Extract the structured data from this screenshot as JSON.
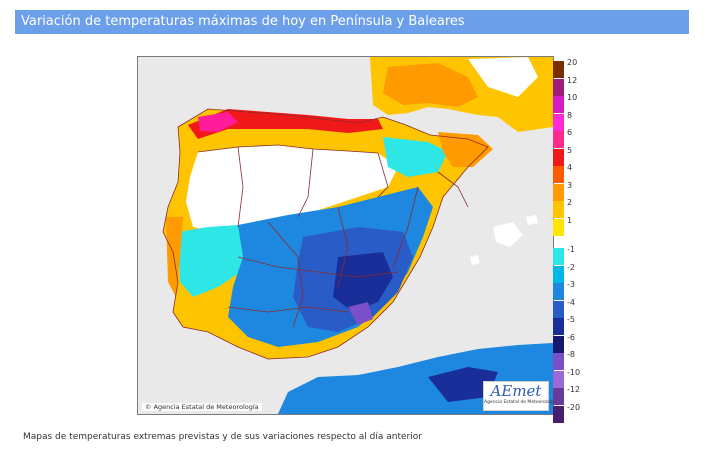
{
  "title": "Variación de temperaturas máximas de hoy en Península y Baleares",
  "map": {
    "copyright": "© Agencia Estatal de Meteorología",
    "logo_text": "AEmet",
    "logo_subtext": "Agencia Estatal de Meteorología",
    "land_colors": {
      "sea": "#e9e9e9",
      "neutral": "#ffffff",
      "plus1": "#ffe600",
      "plus2": "#ffc400",
      "plus3": "#ff9a00",
      "plus4": "#ff5a00",
      "plus5": "#f01919",
      "plus6": "#ff1c9a",
      "minus1": "#2ee6e6",
      "minus2": "#00b8e6",
      "minus3": "#1e88e0",
      "minus4": "#2a5cc8",
      "minus5": "#1a2e9a",
      "minus6": "#7a4fc8",
      "border": "#8b2a2a"
    }
  },
  "legend": {
    "positive": [
      {
        "label": "20",
        "color": "#7a2e00"
      },
      {
        "label": "12",
        "color": "#a01c7a"
      },
      {
        "label": "10",
        "color": "#d21cc8"
      },
      {
        "label": "8",
        "color": "#ff2bd6"
      },
      {
        "label": "6",
        "color": "#ff2a8a"
      },
      {
        "label": "5",
        "color": "#f01919"
      },
      {
        "label": "4",
        "color": "#ff5a00"
      },
      {
        "label": "3",
        "color": "#ff9a00"
      },
      {
        "label": "2",
        "color": "#ffc400"
      },
      {
        "label": "1",
        "color": "#ffe600"
      }
    ],
    "negative": [
      {
        "label": "-1",
        "color": "#2ee6e6"
      },
      {
        "label": "-2",
        "color": "#00b8e6"
      },
      {
        "label": "-3",
        "color": "#1e88e0"
      },
      {
        "label": "-4",
        "color": "#2a5cc8"
      },
      {
        "label": "-5",
        "color": "#1a2e9a"
      },
      {
        "label": "-6",
        "color": "#16186e"
      },
      {
        "label": "-8",
        "color": "#7a4fc8"
      },
      {
        "label": "-10",
        "color": "#9c6ad6"
      },
      {
        "label": "-12",
        "color": "#6a3a9a"
      },
      {
        "label": "-20",
        "color": "#4a1e6e"
      }
    ]
  },
  "caption": "Mapas de temperaturas extremas previstas y de sus variaciones respecto al día anterior"
}
